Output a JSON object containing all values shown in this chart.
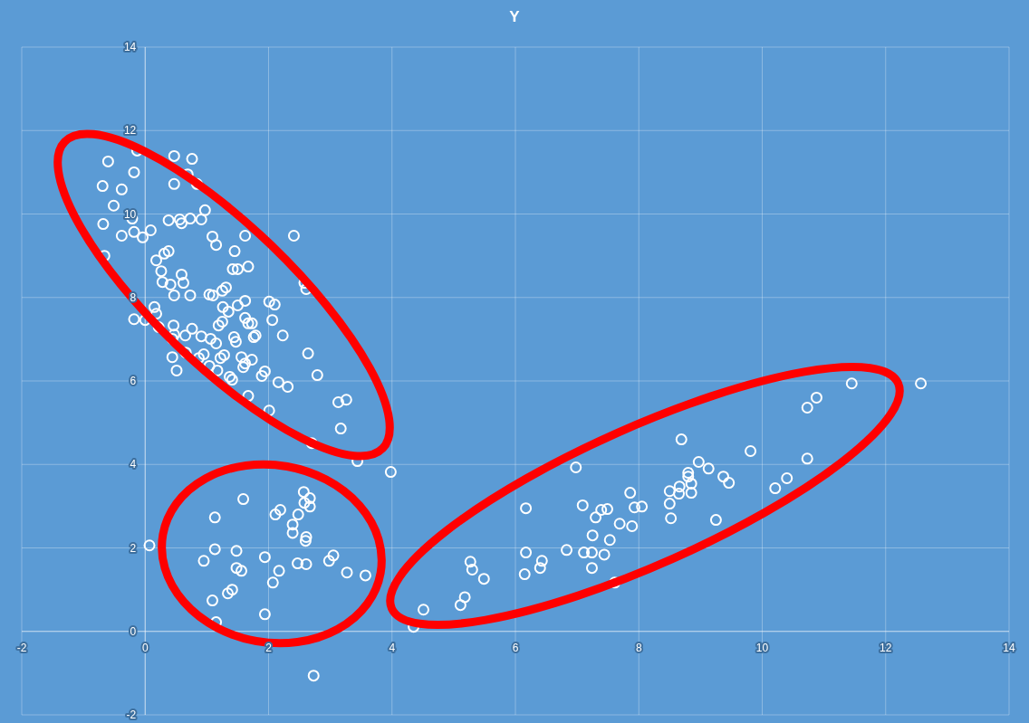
{
  "chart_data": {
    "type": "scatter",
    "title": "Y",
    "marker": "circle",
    "grid": true,
    "xlim": [
      -2,
      14
    ],
    "xticks": [
      -2,
      0,
      2,
      4,
      6,
      8,
      10,
      12,
      14
    ],
    "ylim": [
      -2,
      14
    ],
    "yticks": [
      -2,
      0,
      2,
      4,
      6,
      8,
      10,
      12,
      14
    ],
    "series": [
      {
        "color": "#ffffff",
        "x": [
          -0.13,
          -0.6,
          0.47,
          0.76,
          -0.18,
          -0.38,
          -0.51,
          0.47,
          0.84,
          0.69,
          -0.69,
          -0.68,
          -0.21,
          0.38,
          0.56,
          0.59,
          0.73,
          0.91,
          0.97,
          -0.66,
          -0.38,
          -0.18,
          -0.04,
          0.09,
          1.09,
          1.15,
          1.62,
          2.41,
          0.18,
          0.31,
          0.38,
          0.26,
          0.41,
          0.59,
          0.62,
          0.73,
          0.47,
          1.04,
          0.28,
          1.45,
          1.42,
          1.5,
          1.67,
          1.31,
          1.25,
          1.5,
          1.62,
          2.01,
          2.1,
          2.58,
          2.61,
          0.15,
          0.18,
          0.22,
          -0.18,
          0,
          0.46,
          0.47,
          0.44,
          0.65,
          0.76,
          0.91,
          1.06,
          1.15,
          1.19,
          1.25,
          1.26,
          1.35,
          1.44,
          1.47,
          1.62,
          1.67,
          1.73,
          1.79,
          1.76,
          2.06,
          2.23,
          1.1,
          0.44,
          0.66,
          0.87,
          0.95,
          1.04,
          1.22,
          1.28,
          1.17,
          0.51,
          1.37,
          1.41,
          1.59,
          1.56,
          1.73,
          1.89,
          1.94,
          1.62,
          1.67,
          2.01,
          2.16,
          2.31,
          2.64,
          2.79,
          3.13,
          3.26,
          3.17,
          2.7,
          3.44,
          0.07,
          1.13,
          1.59,
          1.13,
          0.95,
          1.48,
          1.48,
          1.56,
          1.09,
          1.34,
          1.41,
          1.15,
          1.94,
          1.94,
          2.07,
          2.17,
          2.11,
          2.19,
          2.48,
          2.57,
          2.67,
          2.58,
          2.67,
          2.39,
          2.39,
          2.61,
          2.6,
          2.47,
          2.61,
          2.98,
          3.05,
          3.27,
          3.57,
          2.73,
          3.98,
          4.35,
          4.51,
          5.11,
          5.18,
          5.27,
          5.3,
          5.49,
          6.15,
          6.17,
          6.17,
          6.4,
          6.43,
          6.83,
          6.98,
          7.09,
          7.11,
          7.24,
          7.24,
          7.3,
          7.25,
          7.39,
          7.49,
          7.53,
          7.44,
          7.61,
          7.69,
          7.89,
          7.86,
          7.93,
          8.05,
          8.5,
          8.5,
          8.52,
          8.65,
          8.66,
          8.8,
          8.8,
          8.85,
          8.85,
          8.97,
          11.45,
          12.57,
          10.88,
          10.73,
          8.69,
          9.81,
          10.73,
          9.13,
          10.4,
          10.21,
          9.37,
          9.46,
          9.25
        ],
        "values": [
          11.52,
          11.26,
          11.39,
          11.32,
          11,
          10.59,
          10.2,
          10.72,
          10.72,
          10.95,
          10.67,
          9.76,
          9.89,
          9.85,
          9.87,
          9.78,
          9.89,
          9.87,
          10.09,
          9,
          9.48,
          9.57,
          9.44,
          9.61,
          9.46,
          9.26,
          9.48,
          9.48,
          8.89,
          9.05,
          9.11,
          8.63,
          8.31,
          8.55,
          8.35,
          8.05,
          8.05,
          8.07,
          8.37,
          9.11,
          8.68,
          8.68,
          8.74,
          8.24,
          8.16,
          7.81,
          7.92,
          7.9,
          7.83,
          8.35,
          8.2,
          7.77,
          7.61,
          7.29,
          7.48,
          7.46,
          7.33,
          7.11,
          7.01,
          7.09,
          7.25,
          7.07,
          7.01,
          6.9,
          7.33,
          7.42,
          7.77,
          7.66,
          7.05,
          6.94,
          7.51,
          7.38,
          7.38,
          7.09,
          7.05,
          7.46,
          7.09,
          8.05,
          6.57,
          6.68,
          6.55,
          6.64,
          6.36,
          6.55,
          6.62,
          6.25,
          6.25,
          6.1,
          6.03,
          6.33,
          6.57,
          6.51,
          6.12,
          6.23,
          6.42,
          5.64,
          5.29,
          5.97,
          5.86,
          6.66,
          6.14,
          5.49,
          5.55,
          4.86,
          4.51,
          4.08,
          2.06,
          2.73,
          3.17,
          1.97,
          1.69,
          1.93,
          1.52,
          1.45,
          0.74,
          0.91,
          1,
          0.22,
          1.78,
          0.41,
          1.17,
          1.45,
          2.8,
          2.91,
          2.8,
          3.34,
          3.19,
          3.08,
          2.99,
          2.56,
          2.36,
          2.26,
          2.17,
          1.63,
          1.61,
          1.69,
          1.82,
          1.41,
          1.34,
          -1.06,
          3.82,
          0.11,
          0.52,
          0.63,
          0.82,
          1.67,
          1.48,
          1.26,
          1.37,
          1.89,
          2.95,
          1.52,
          1.69,
          1.95,
          3.93,
          3.02,
          1.89,
          1.89,
          1.52,
          2.73,
          2.3,
          2.91,
          2.93,
          2.19,
          1.84,
          1.17,
          2.58,
          2.52,
          3.32,
          2.97,
          2.99,
          3.36,
          3.06,
          2.71,
          3.3,
          3.47,
          3.8,
          3.71,
          3.54,
          3.32,
          4.06,
          5.94,
          5.94,
          5.6,
          5.36,
          4.6,
          4.32,
          4.14,
          3.9,
          3.67,
          3.43,
          3.71,
          3.56,
          2.67
        ]
      }
    ]
  }
}
